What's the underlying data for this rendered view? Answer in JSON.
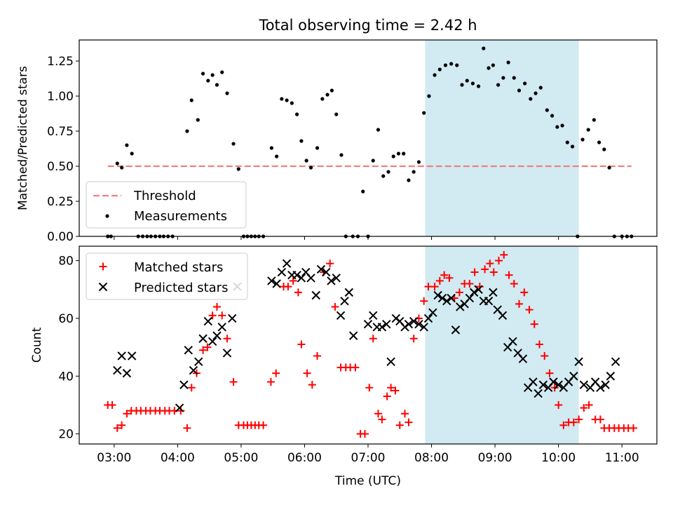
{
  "chart_data": [
    {
      "type": "scatter",
      "title": "Total observing time = 2.42 h",
      "xlabel": "",
      "ylabel": "Matched/Predicted stars",
      "xlim": [
        2.45,
        11.55
      ],
      "ylim": [
        0,
        1.4
      ],
      "yticks": [
        0.0,
        0.25,
        0.5,
        0.75,
        1.0,
        1.25
      ],
      "ytick_labels": [
        "0.00",
        "0.25",
        "0.50",
        "0.75",
        "1.00",
        "1.25"
      ],
      "xticks": [
        3,
        4,
        5,
        6,
        7,
        8,
        9,
        10,
        11
      ],
      "show_xtick_labels": false,
      "grid": false,
      "legend": "lower-left",
      "highlight_span": {
        "x0": 7.9,
        "x1": 10.32,
        "color": "#add8e6"
      },
      "threshold": {
        "name": "Threshold",
        "y": 0.5,
        "x0": 2.9,
        "x1": 11.15,
        "color": "#f08080",
        "style": "dashed"
      },
      "series": [
        {
          "name": "Measurements",
          "marker": "dot",
          "color": "#000000",
          "x": [
            2.9,
            2.95,
            3.05,
            3.12,
            3.2,
            3.28,
            3.38,
            3.45,
            3.52,
            3.58,
            3.65,
            3.72,
            3.78,
            3.85,
            3.92,
            4.15,
            4.22,
            4.32,
            4.4,
            4.48,
            4.55,
            4.62,
            4.7,
            4.78,
            4.88,
            4.96,
            5.04,
            5.1,
            5.16,
            5.22,
            5.28,
            5.35,
            5.48,
            5.56,
            5.64,
            5.72,
            5.8,
            5.88,
            5.95,
            6.03,
            6.1,
            6.2,
            6.28,
            6.36,
            6.43,
            6.5,
            6.58,
            6.65,
            6.76,
            6.84,
            6.92,
            7.0,
            7.08,
            7.16,
            7.24,
            7.32,
            7.4,
            7.48,
            7.56,
            7.64,
            7.72,
            7.8,
            7.88,
            7.96,
            8.05,
            8.13,
            8.22,
            8.31,
            8.4,
            8.48,
            8.56,
            8.65,
            8.74,
            8.82,
            8.9,
            8.97,
            9.05,
            9.13,
            9.21,
            9.3,
            9.38,
            9.47,
            9.56,
            9.64,
            9.72,
            9.82,
            9.9,
            9.98,
            10.06,
            10.14,
            10.22,
            10.3,
            10.38,
            10.47,
            10.56,
            10.64,
            10.72,
            10.8,
            10.88,
            11.0,
            11.08,
            11.15
          ],
          "y": [
            0.0,
            0.0,
            0.52,
            0.49,
            0.65,
            0.59,
            0.0,
            0.0,
            0.0,
            0.0,
            0.0,
            0.0,
            0.0,
            0.0,
            0.0,
            0.75,
            0.97,
            0.83,
            1.16,
            1.11,
            1.15,
            1.08,
            1.17,
            1.02,
            0.66,
            0.48,
            0.0,
            0.0,
            0.0,
            0.0,
            0.0,
            0.0,
            0.63,
            0.57,
            0.98,
            0.97,
            0.95,
            0.87,
            0.68,
            0.54,
            0.49,
            0.63,
            0.98,
            1.01,
            1.04,
            0.87,
            0.58,
            0.0,
            0.0,
            0.0,
            0.32,
            0.0,
            0.54,
            0.76,
            0.43,
            0.46,
            0.57,
            0.59,
            0.59,
            0.4,
            0.46,
            0.53,
            0.88,
            1.0,
            1.15,
            1.19,
            1.22,
            1.23,
            1.22,
            1.08,
            1.11,
            1.09,
            1.07,
            1.34,
            1.2,
            1.22,
            1.08,
            1.13,
            1.24,
            1.13,
            1.04,
            1.09,
            0.98,
            1.02,
            1.06,
            0.9,
            0.86,
            0.78,
            0.79,
            0.67,
            0.64,
            0.0,
            0.69,
            0.76,
            0.83,
            0.67,
            0.62,
            0.49,
            0.0,
            0.0,
            0.0,
            0.0
          ]
        }
      ]
    },
    {
      "type": "scatter",
      "title": "",
      "xlabel": "Time (UTC)",
      "ylabel": "Count",
      "xlim": [
        2.45,
        11.55
      ],
      "ylim": [
        16.5,
        85
      ],
      "yticks": [
        20,
        40,
        60,
        80
      ],
      "ytick_labels": [
        "20",
        "40",
        "60",
        "80"
      ],
      "xticks": [
        3,
        4,
        5,
        6,
        7,
        8,
        9,
        10,
        11
      ],
      "xtick_labels": [
        "03:00",
        "04:00",
        "05:00",
        "06:00",
        "07:00",
        "08:00",
        "09:00",
        "10:00",
        "11:00"
      ],
      "grid": false,
      "legend": "upper-left",
      "highlight_span": {
        "x0": 7.9,
        "x1": 10.32,
        "color": "#add8e6"
      },
      "series": [
        {
          "name": "Matched stars",
          "marker": "plus",
          "color": "#ff0000",
          "x": [
            2.9,
            2.97,
            3.05,
            3.12,
            3.2,
            3.27,
            3.35,
            3.42,
            3.5,
            3.57,
            3.65,
            3.72,
            3.8,
            3.87,
            3.95,
            4.05,
            4.15,
            4.22,
            4.3,
            4.4,
            4.47,
            4.55,
            4.62,
            4.7,
            4.78,
            4.88,
            4.96,
            5.04,
            5.1,
            5.16,
            5.22,
            5.28,
            5.35,
            5.47,
            5.55,
            5.67,
            5.74,
            5.82,
            5.9,
            5.95,
            6.04,
            6.12,
            6.2,
            6.3,
            6.4,
            6.48,
            6.57,
            6.65,
            6.72,
            6.8,
            6.88,
            6.95,
            7.02,
            7.08,
            7.16,
            7.22,
            7.3,
            7.36,
            7.43,
            7.5,
            7.58,
            7.64,
            7.72,
            7.8,
            7.88,
            7.95,
            8.05,
            8.13,
            8.2,
            8.28,
            8.36,
            8.44,
            8.52,
            8.6,
            8.68,
            8.76,
            8.84,
            8.92,
            8.98,
            9.06,
            9.14,
            9.22,
            9.3,
            9.38,
            9.46,
            9.54,
            9.62,
            9.7,
            9.78,
            9.86,
            9.94,
            10.0,
            10.08,
            10.16,
            10.24,
            10.32,
            10.4,
            10.48,
            10.58,
            10.66,
            10.72,
            10.8,
            10.88,
            10.95,
            11.03,
            11.1,
            11.18
          ],
          "y": [
            30,
            30,
            22,
            23,
            27,
            28,
            28,
            28,
            28,
            28,
            28,
            28,
            28,
            28,
            28,
            28,
            22,
            36,
            41,
            49,
            50,
            61,
            64,
            61,
            53,
            38,
            23,
            23,
            23,
            23,
            23,
            23,
            23,
            38,
            41,
            71,
            71,
            73,
            69,
            51,
            41,
            37,
            47,
            76,
            79,
            64,
            43,
            43,
            43,
            43,
            20,
            20,
            36,
            53,
            27,
            25,
            33,
            36,
            35,
            23,
            27,
            24,
            53,
            60,
            66,
            71,
            71,
            73,
            75,
            74,
            67,
            69,
            72,
            72,
            76,
            71,
            77,
            79,
            76,
            80,
            82,
            75,
            72,
            65,
            69,
            63,
            58,
            51,
            47,
            41,
            36,
            30,
            23,
            24,
            24,
            25,
            29,
            30,
            25,
            25,
            22,
            22,
            22,
            22,
            22,
            22,
            22
          ]
        },
        {
          "name": "Predicted stars",
          "marker": "x",
          "color": "#000000",
          "x": [
            3.05,
            3.12,
            3.2,
            3.28,
            4.03,
            4.1,
            4.17,
            4.25,
            4.33,
            4.4,
            4.48,
            4.55,
            4.62,
            4.7,
            4.78,
            4.86,
            4.94,
            5.48,
            5.56,
            5.64,
            5.72,
            5.8,
            5.88,
            5.95,
            6.02,
            6.1,
            6.18,
            6.26,
            6.34,
            6.42,
            6.5,
            6.57,
            6.63,
            6.7,
            6.77,
            7.0,
            7.08,
            7.14,
            7.22,
            7.29,
            7.36,
            7.44,
            7.5,
            7.58,
            7.64,
            7.72,
            7.8,
            7.88,
            7.95,
            8.02,
            8.1,
            8.17,
            8.24,
            8.31,
            8.38,
            8.45,
            8.52,
            8.6,
            8.67,
            8.74,
            8.82,
            8.9,
            8.97,
            9.04,
            9.12,
            9.2,
            9.28,
            9.36,
            9.44,
            9.52,
            9.6,
            9.68,
            9.76,
            9.84,
            9.92,
            10.0,
            10.08,
            10.16,
            10.24,
            10.32,
            10.4,
            10.5,
            10.58,
            10.66,
            10.74,
            10.82,
            10.9
          ],
          "y": [
            42,
            47,
            41,
            47,
            29,
            37,
            49,
            42,
            45,
            53,
            59,
            52,
            54,
            57,
            48,
            60,
            71,
            73,
            72,
            76,
            79,
            75,
            75,
            74,
            76,
            74,
            68,
            77,
            76,
            73,
            74,
            61,
            66,
            69,
            54,
            58,
            61,
            57,
            57,
            58,
            45,
            60,
            59,
            57,
            58,
            59,
            58,
            57,
            60,
            62,
            68,
            67,
            66,
            67,
            56,
            64,
            65,
            67,
            69,
            70,
            66,
            66,
            69,
            63,
            61,
            50,
            52,
            48,
            46,
            36,
            38,
            34,
            37,
            36,
            38,
            37,
            36,
            38,
            40,
            45,
            37,
            36,
            38,
            36,
            37,
            40,
            45
          ]
        }
      ]
    }
  ]
}
